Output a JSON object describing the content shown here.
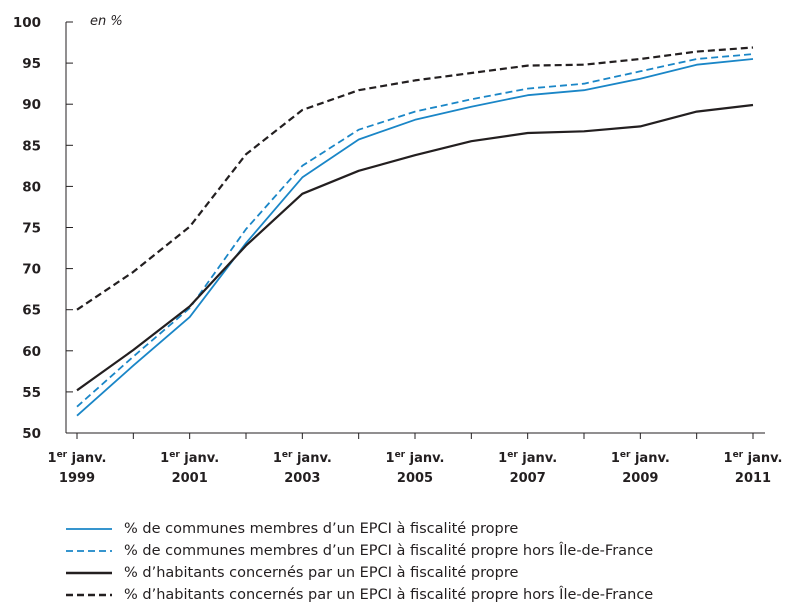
{
  "chart_data": {
    "type": "line",
    "unit_label": "en %",
    "y_ticks": [
      50,
      55,
      60,
      65,
      70,
      75,
      80,
      85,
      90,
      95,
      100
    ],
    "ylim": [
      50,
      100
    ],
    "grid": false,
    "x": [
      1999,
      2000,
      2001,
      2002,
      2003,
      2004,
      2005,
      2006,
      2007,
      2008,
      2009,
      2010,
      2011
    ],
    "x_tick_labels": [
      {
        "x": 1999,
        "line1": "1er janv.",
        "line2": "1999"
      },
      {
        "x": 2001,
        "line1": "1er janv.",
        "line2": "2001"
      },
      {
        "x": 2003,
        "line1": "1er janv.",
        "line2": "2003"
      },
      {
        "x": 2005,
        "line1": "1er janv.",
        "line2": "2005"
      },
      {
        "x": 2007,
        "line1": "1er janv.",
        "line2": "2007"
      },
      {
        "x": 2009,
        "line1": "1er janv.",
        "line2": "2009"
      },
      {
        "x": 2011,
        "line1": "1er janv.",
        "line2": "2011"
      }
    ],
    "legend_position": "bottom",
    "series": [
      {
        "name": "% de communes membres d’un EPCI à fiscalité propre",
        "color": "#1a86c7",
        "style": "solid",
        "values": [
          52.1,
          58.2,
          64.1,
          73.1,
          81.1,
          85.7,
          88.1,
          89.7,
          91.1,
          91.7,
          93.1,
          94.8,
          95.5
        ]
      },
      {
        "name": "% de communes membres d’un EPCI à fiscalité propre hors Île-de-France",
        "color": "#1a86c7",
        "style": "dashed",
        "values": [
          53.2,
          59.3,
          65.2,
          74.8,
          82.5,
          86.9,
          89.1,
          90.6,
          91.9,
          92.5,
          94.0,
          95.5,
          96.1
        ]
      },
      {
        "name": "% d’habitants concernés par un EPCI à fiscalité propre",
        "color": "#231f20",
        "style": "solid",
        "values": [
          55.2,
          60.1,
          65.4,
          72.8,
          79.1,
          81.9,
          83.8,
          85.5,
          86.5,
          86.7,
          87.3,
          89.1,
          89.9
        ]
      },
      {
        "name": "% d’habitants concernés par un EPCI à fiscalité propre hors Île-de-France",
        "color": "#231f20",
        "style": "dashed",
        "values": [
          65.0,
          69.6,
          75.1,
          83.9,
          89.3,
          91.7,
          92.9,
          93.8,
          94.7,
          94.8,
          95.5,
          96.4,
          96.9
        ]
      }
    ]
  }
}
